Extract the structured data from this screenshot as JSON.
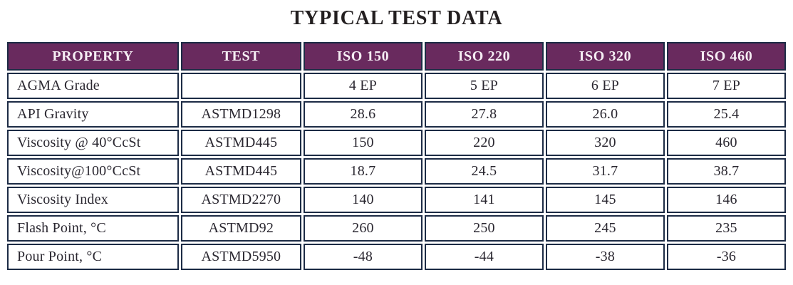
{
  "title": "TYPICAL TEST DATA",
  "colors": {
    "header_bg": "#692A5E",
    "header_text": "#F5EDF3",
    "cell_border": "#1C2B45",
    "title_text": "#231F20",
    "body_text": "#2A2730",
    "page_bg": "#FFFFFF"
  },
  "table": {
    "columns": [
      "PROPERTY",
      "TEST",
      "ISO 150",
      "ISO 220",
      "ISO 320",
      "ISO 460"
    ],
    "rows": [
      {
        "property": "AGMA Grade",
        "test": "",
        "values": [
          "4 EP",
          "5 EP",
          "6 EP",
          "7 EP"
        ]
      },
      {
        "property": "API Gravity",
        "test": "ASTMD1298",
        "values": [
          "28.6",
          "27.8",
          "26.0",
          "25.4"
        ]
      },
      {
        "property": "Viscosity @ 40°CcSt",
        "test": "ASTMD445",
        "values": [
          "150",
          "220",
          "320",
          "460"
        ]
      },
      {
        "property": "Viscosity@100°CcSt",
        "test": "ASTMD445",
        "values": [
          "18.7",
          "24.5",
          "31.7",
          "38.7"
        ]
      },
      {
        "property": "Viscosity Index",
        "test": "ASTMD2270",
        "values": [
          "140",
          "141",
          "145",
          "146"
        ]
      },
      {
        "property": "Flash Point, °C",
        "test": "ASTMD92",
        "values": [
          "260",
          "250",
          "245",
          "235"
        ]
      },
      {
        "property": "Pour Point, °C",
        "test": "ASTMD5950",
        "values": [
          "-48",
          "-44",
          "-38",
          "-36"
        ]
      }
    ]
  }
}
